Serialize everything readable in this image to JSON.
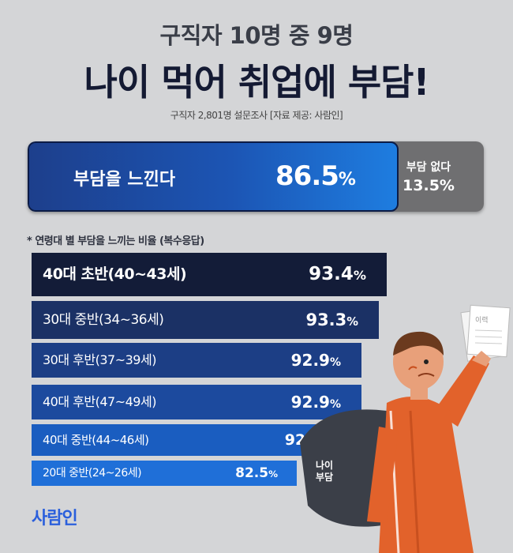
{
  "header": {
    "subtitle": "구직자 10명 중 9명",
    "title": "나이 먹어 취업에 부담!",
    "source": "구직자 2,801명 설문조사 [자료 제공: 사람인]"
  },
  "split": {
    "yes_label": "부담을 느낀다",
    "yes_value": "86.5",
    "no_label": "부담 없다",
    "no_value": "13.5%",
    "colors": {
      "yes": "#1c55b4",
      "no": "#6f6f71"
    }
  },
  "breakdown_title": "* 연령대 별 부담을 느끼는 비율 (복수응답)",
  "chart_data": {
    "type": "bar",
    "title": "",
    "orientation": "horizontal",
    "unit": "%",
    "categories": [
      "40대 초반(40~43세)",
      "30대 중반(34~36세)",
      "30대 후반(37~39세)",
      "40대 후반(47~49세)",
      "40대 중반(44~46세)",
      "20대 중반(24~26세)"
    ],
    "values": [
      93.4,
      93.3,
      92.9,
      92.9,
      92.2,
      82.5
    ],
    "value_labels": [
      "93.4",
      "93.3",
      "92.9",
      "92.9",
      "92.2",
      "82.5"
    ],
    "colors": [
      "#131c38",
      "#1b3165",
      "#1c3e85",
      "#1c4a9e",
      "#1a5dc0",
      "#1f6fd8"
    ]
  },
  "illustration": {
    "badge": "나이\n부담",
    "paper_label": "이력"
  },
  "logo": "사람인"
}
